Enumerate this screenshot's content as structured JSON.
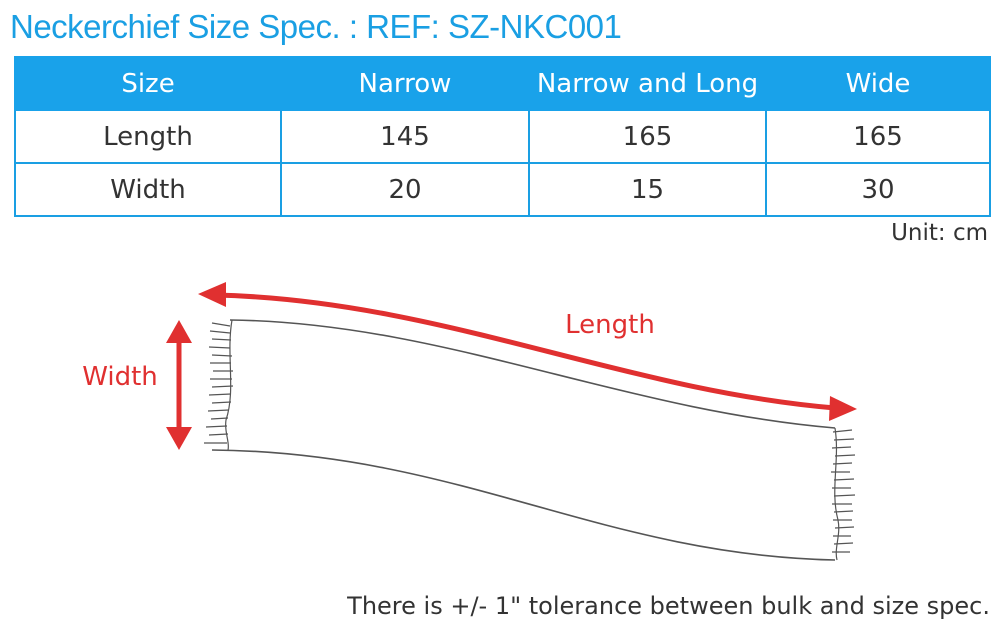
{
  "title": "Neckerchief Size Spec. : REF: SZ-NKC001",
  "table": {
    "headers": [
      "Size",
      "Narrow",
      "Narrow and Long",
      "Wide"
    ],
    "rows": [
      {
        "label": "Length",
        "values": [
          "145",
          "165",
          "165"
        ]
      },
      {
        "label": "Width",
        "values": [
          "20",
          "15",
          "30"
        ]
      }
    ]
  },
  "unit": "Unit: cm",
  "diagram": {
    "length_label": "Length",
    "width_label": "Width",
    "arrow_color": "#e03030",
    "accent_color": "#1a9fe3"
  },
  "note": "There is +/- 1\" tolerance between bulk and size spec."
}
